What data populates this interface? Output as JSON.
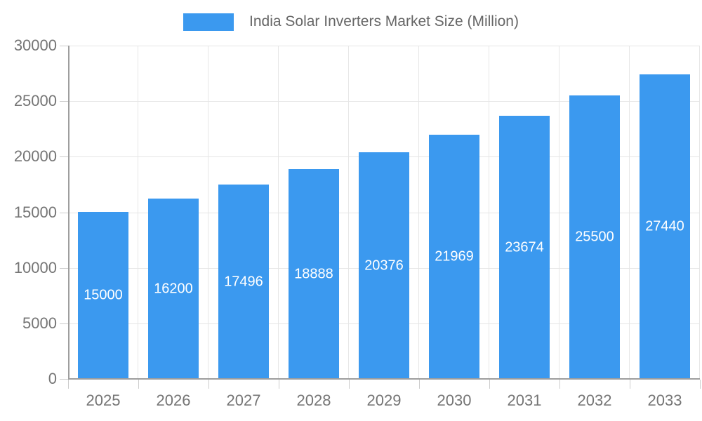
{
  "chart_data": {
    "type": "bar",
    "title": "India Solar Inverters Market Size (Million)",
    "categories": [
      "2025",
      "2026",
      "2027",
      "2028",
      "2029",
      "2030",
      "2031",
      "2032",
      "2033"
    ],
    "values": [
      15000,
      16200,
      17496,
      18888,
      20376,
      21969,
      23674,
      25500,
      27440
    ],
    "xlabel": "",
    "ylabel": "",
    "ylim": [
      0,
      30000
    ],
    "ytick_step": 5000,
    "yticks": [
      "0",
      "5000",
      "10000",
      "15000",
      "20000",
      "25000",
      "30000"
    ],
    "grid": true,
    "legend_position": "top",
    "colors": {
      "bar": "#3B99EF",
      "value_label": "#FFFFFF",
      "axis_text": "#757575",
      "legend_text": "#666666",
      "grid": "#E6E6E6",
      "axis_line": "#9E9E9E",
      "tick": "#CCCCCC",
      "background": "#FFFFFF"
    }
  }
}
